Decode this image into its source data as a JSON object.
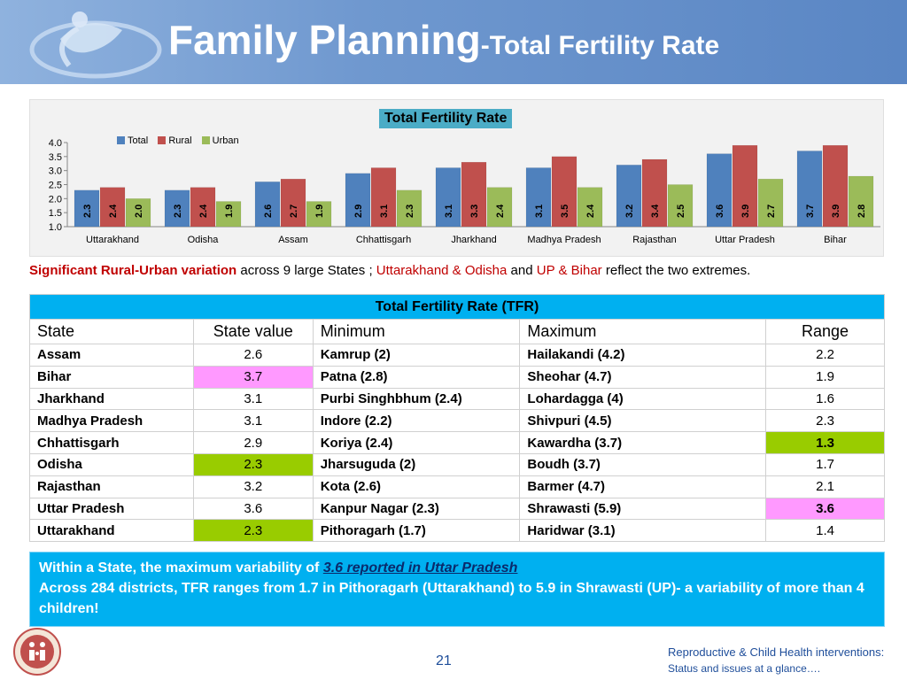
{
  "header": {
    "title_main": "Family Planning",
    "title_sub": "-Total Fertility Rate"
  },
  "colors": {
    "total": "#4f81bd",
    "rural": "#c0504d",
    "urban": "#9bbb59",
    "table_header": "#00b0f0",
    "highlight_high": "#ff99ff",
    "highlight_low": "#99cc00"
  },
  "chart_data": {
    "type": "bar",
    "title": "Total Fertility Rate",
    "categories": [
      "Uttarakhand",
      "Odisha",
      "Assam",
      "Chhattisgarh",
      "Jharkhand",
      "Madhya Pradesh",
      "Rajasthan",
      "Uttar Pradesh",
      "Bihar"
    ],
    "series": [
      {
        "name": "Total",
        "values": [
          2.3,
          2.3,
          2.6,
          2.9,
          3.1,
          3.1,
          3.2,
          3.6,
          3.7
        ],
        "value_labels": [
          "2.3",
          "2.3",
          "2.6",
          "2.9",
          "3.1",
          "3.1",
          "3.2",
          "3.6",
          "3.7"
        ]
      },
      {
        "name": "Rural",
        "values": [
          2.4,
          2.4,
          2.7,
          3.1,
          3.3,
          3.5,
          3.4,
          3.9,
          3.9
        ],
        "value_labels": [
          "2.4",
          "2.4",
          "2.7",
          "3.1",
          "3.3",
          "3.5",
          "3.4",
          "3.9",
          "3.9"
        ]
      },
      {
        "name": "Urban",
        "values": [
          2.0,
          1.9,
          1.9,
          2.3,
          2.4,
          2.4,
          2.5,
          2.7,
          2.8
        ],
        "value_labels": [
          "2.0",
          "1.9",
          "1.9",
          "2.3",
          "2.4",
          "2.4",
          "2.5",
          "2.7",
          "2.8"
        ]
      }
    ],
    "xlabel": "",
    "ylabel": "",
    "ylim": [
      1.0,
      4.0
    ],
    "yticks": [
      "1.0",
      "1.5",
      "2.0",
      "2.5",
      "3.0",
      "3.5",
      "4.0"
    ],
    "legend_position": "top-left",
    "grid": false
  },
  "caption": {
    "part1": "Significant Rural-Urban variation",
    "part2": " across 9 large States ; ",
    "part3": "Uttarakhand & Odisha",
    "part4": " and ",
    "part5": "UP & Bihar",
    "part6": " reflect the two extremes."
  },
  "table": {
    "caption": "Total Fertility Rate (TFR)",
    "columns": [
      "State",
      "State value",
      "Minimum",
      "Maximum",
      "Range"
    ],
    "rows": [
      {
        "state": "Assam",
        "value": "2.6",
        "min": "Kamrup (2)",
        "max": "Hailakandi (4.2)",
        "range": "2.2"
      },
      {
        "state": "Bihar",
        "value": "3.7",
        "min": "Patna (2.8)",
        "max": "Sheohar (4.7)",
        "range": "1.9"
      },
      {
        "state": "Jharkhand",
        "value": "3.1",
        "min": "Purbi Singhbhum (2.4)",
        "max": "Lohardagga (4)",
        "range": "1.6"
      },
      {
        "state": "Madhya Pradesh",
        "value": "3.1",
        "min": "Indore (2.2)",
        "max": "Shivpuri (4.5)",
        "range": "2.3"
      },
      {
        "state": "Chhattisgarh",
        "value": "2.9",
        "min": "Koriya (2.4)",
        "max": "Kawardha (3.7)",
        "range": "1.3"
      },
      {
        "state": "Odisha",
        "value": "2.3",
        "min": "Jharsuguda (2)",
        "max": "Boudh (3.7)",
        "range": "1.7"
      },
      {
        "state": "Rajasthan",
        "value": "3.2",
        "min": "Kota (2.6)",
        "max": "Barmer (4.7)",
        "range": "2.1"
      },
      {
        "state": "Uttar Pradesh",
        "value": "3.6",
        "min": "Kanpur Nagar (2.3)",
        "max": "Shrawasti (5.9)",
        "range": "3.6"
      },
      {
        "state": "Uttarakhand",
        "value": "2.3",
        "min": "Pithoragarh (1.7)",
        "max": "Haridwar (3.1)",
        "range": "1.4"
      }
    ]
  },
  "note": {
    "line1_prefix": "Within a State, the maximum variability of ",
    "line1_emph": "3.6 reported in Uttar Pradesh",
    "line2": "Across 284 districts, TFR ranges from 1.7 in Pithoragarh (Uttarakhand) to 5.9 in Shrawasti (UP)- a variability of more than 4 children!"
  },
  "footer": {
    "page_number": "21",
    "line1": "Reproductive & Child Health interventions:",
    "line2": "Status and issues at a glance…."
  }
}
